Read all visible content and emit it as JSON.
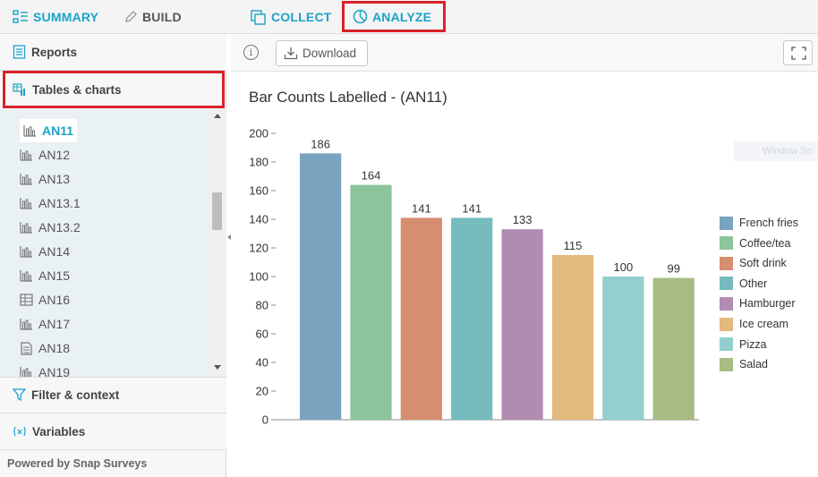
{
  "nav": {
    "tabs": [
      {
        "label": "SUMMARY",
        "icon": "summary-icon"
      },
      {
        "label": "BUILD",
        "icon": "pencil-icon"
      },
      {
        "label": "COLLECT",
        "icon": "collect-icon"
      },
      {
        "label": "ANALYZE",
        "icon": "analyze-pie-icon",
        "active": true
      }
    ]
  },
  "sidebar": {
    "reports_label": "Reports",
    "tables_label": "Tables & charts",
    "tree_items": [
      {
        "label": "AN11",
        "icon": "bar-chart-icon",
        "selected": true
      },
      {
        "label": "AN12",
        "icon": "bar-chart-icon"
      },
      {
        "label": "AN13",
        "icon": "bar-chart-icon"
      },
      {
        "label": "AN13.1",
        "icon": "bar-chart-icon"
      },
      {
        "label": "AN13.2",
        "icon": "bar-chart-icon"
      },
      {
        "label": "AN14",
        "icon": "bar-chart-icon"
      },
      {
        "label": "AN15",
        "icon": "bar-chart-icon"
      },
      {
        "label": "AN16",
        "icon": "table-icon"
      },
      {
        "label": "AN17",
        "icon": "bar-chart-icon"
      },
      {
        "label": "AN18",
        "icon": "document-icon"
      },
      {
        "label": "AN19",
        "icon": "bar-chart-icon"
      }
    ],
    "filter_label": "Filter & context",
    "variables_label": "Variables",
    "powered_by": "Powered by Snap Surveys"
  },
  "toolbar": {
    "download_label": "Download"
  },
  "watermark": "Window Sn",
  "colors": {
    "accent": "#1aa3c8",
    "highlight_border": "#d9222a"
  },
  "chart_data": {
    "type": "bar",
    "title": "Bar Counts Labelled - (AN11)",
    "categories": [
      "French fries",
      "Coffee/tea",
      "Soft drink",
      "Other",
      "Hamburger",
      "Ice cream",
      "Pizza",
      "Salad"
    ],
    "values": [
      186,
      164,
      141,
      141,
      133,
      115,
      100,
      99
    ],
    "colors": [
      "#7aa3c0",
      "#8cc49b",
      "#d58e70",
      "#76bcbf",
      "#b18cb1",
      "#e3b97c",
      "#93cfcd",
      "#a7bb82"
    ],
    "ylim": [
      0,
      200
    ],
    "yticks": [
      0,
      20,
      40,
      60,
      80,
      100,
      120,
      140,
      160,
      180,
      200
    ],
    "legend_position": "right",
    "grid": false
  }
}
